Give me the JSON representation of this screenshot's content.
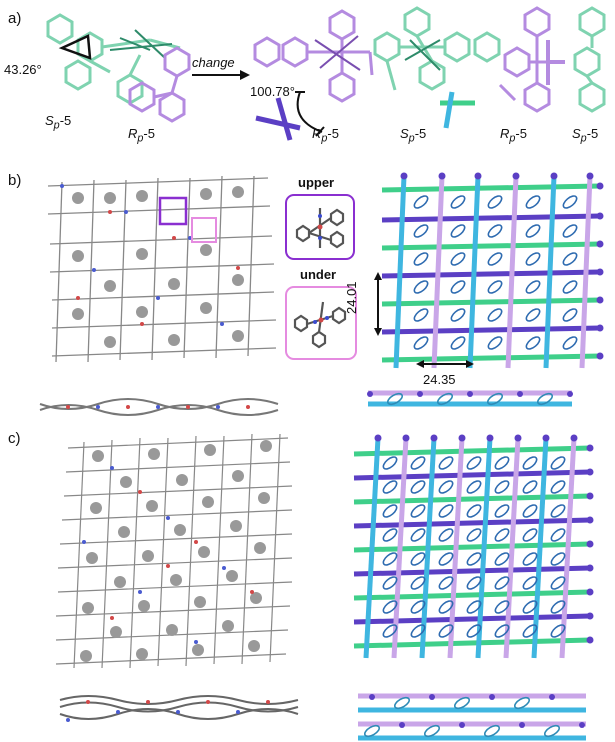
{
  "panels": {
    "a": "a)",
    "b": "b)",
    "c": "c)"
  },
  "panel_a": {
    "angle_small": "43.26°",
    "angle_large": "100.78°",
    "arrow_label": "change",
    "labels": [
      {
        "sym": "S",
        "sub": "p",
        "suffix": "-5"
      },
      {
        "sym": "R",
        "sub": "p",
        "suffix": "-5"
      },
      {
        "sym": "R",
        "sub": "p",
        "suffix": "-5"
      },
      {
        "sym": "S",
        "sub": "p",
        "suffix": "-5"
      },
      {
        "sym": "R",
        "sub": "p",
        "suffix": "-5"
      },
      {
        "sym": "S",
        "sub": "p",
        "suffix": "-5"
      }
    ]
  },
  "panel_b": {
    "upper_label": "upper",
    "under_label": "under",
    "dim_vertical": "24.01",
    "dim_horizontal": "24.35"
  },
  "colors": {
    "teal": "#7fd3b0",
    "purple": "#b48be0",
    "violet": "#5b3fc4",
    "cyan": "#3fb6e0",
    "green": "#3fcf8a",
    "lilac": "#c9a6e8",
    "magenta_box": "#e58be0",
    "dark_purple_box": "#8a2fd0"
  }
}
